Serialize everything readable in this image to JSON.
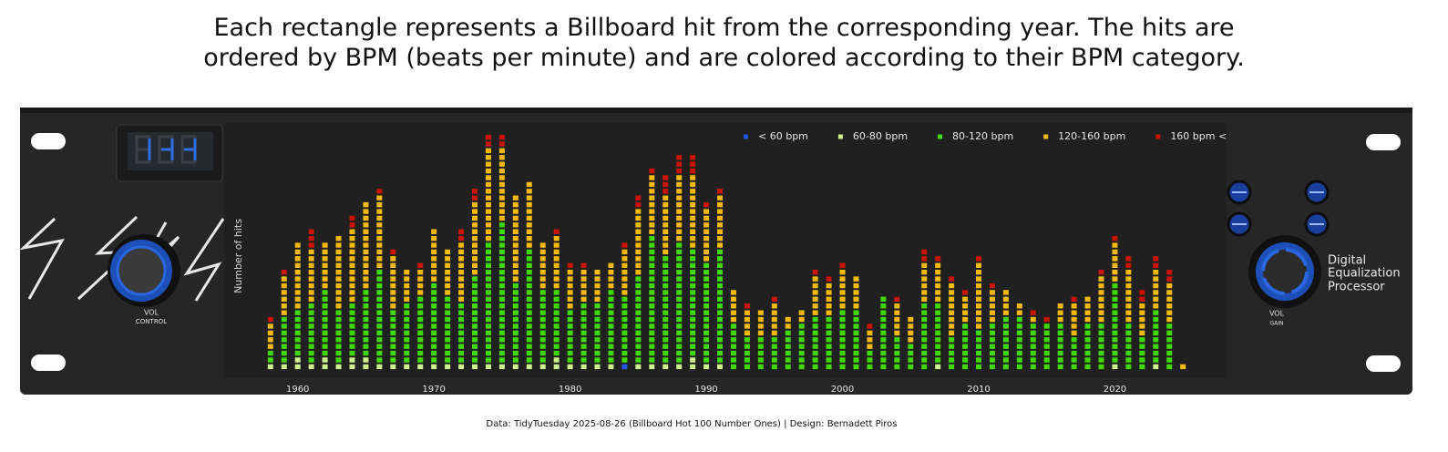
{
  "chart_data": {
    "type": "stacked-cells",
    "title": "Each rectangle represents a Billboard hit from the corresponding year. The hits are ordered by BPM (beats per minute) and are colored according to their BPM category.",
    "ylabel": "Number of hits",
    "caption": "Data: TidyTuesday 2025-08-26 (Billboard Hot 100 Number Ones) | Design: Bernadett Piros",
    "legend": "upper right",
    "x": [
      1958,
      1959,
      1960,
      1961,
      1962,
      1963,
      1964,
      1965,
      1966,
      1967,
      1968,
      1969,
      1970,
      1971,
      1972,
      1973,
      1974,
      1975,
      1976,
      1977,
      1978,
      1979,
      1980,
      1981,
      1982,
      1983,
      1984,
      1985,
      1986,
      1987,
      1988,
      1989,
      1990,
      1991,
      1992,
      1993,
      1994,
      1995,
      1996,
      1997,
      1998,
      1999,
      2000,
      2001,
      2002,
      2003,
      2004,
      2005,
      2006,
      2007,
      2008,
      2009,
      2010,
      2011,
      2012,
      2013,
      2014,
      2015,
      2016,
      2017,
      2018,
      2019,
      2020,
      2021,
      2022,
      2023,
      2024,
      2025
    ],
    "xlim": [
      1954.6,
      2028.2
    ],
    "xticks": [
      1960,
      1970,
      1980,
      1990,
      2000,
      2010,
      2020
    ],
    "ylim": [
      -1.2,
      36.6
    ],
    "series": [
      {
        "name": "< 60 bpm",
        "color": "#1f55e0",
        "values": [
          0,
          0,
          0,
          0,
          0,
          0,
          0,
          0,
          0,
          0,
          0,
          0,
          0,
          0,
          0,
          0,
          0,
          0,
          0,
          0,
          0,
          0,
          0,
          0,
          0,
          0,
          1,
          0,
          0,
          0,
          0,
          0,
          0,
          0,
          0,
          0,
          0,
          0,
          0,
          0,
          0,
          0,
          0,
          0,
          0,
          0,
          0,
          0,
          0,
          0,
          0,
          0,
          0,
          0,
          0,
          0,
          0,
          0,
          0,
          0,
          0,
          0,
          0,
          0,
          0,
          0,
          0,
          0
        ]
      },
      {
        "name": "60-80 bpm",
        "color": "#cdf08c",
        "values": [
          1,
          1,
          2,
          1,
          2,
          1,
          2,
          2,
          1,
          1,
          1,
          1,
          1,
          1,
          1,
          1,
          1,
          1,
          1,
          1,
          1,
          2,
          1,
          1,
          1,
          1,
          0,
          1,
          1,
          1,
          1,
          2,
          1,
          1,
          0,
          0,
          0,
          0,
          0,
          0,
          0,
          0,
          0,
          0,
          0,
          0,
          0,
          0,
          0,
          1,
          0,
          0,
          0,
          0,
          0,
          0,
          0,
          0,
          0,
          0,
          0,
          0,
          1,
          0,
          0,
          1,
          0,
          0
        ]
      },
      {
        "name": "80-120 bpm",
        "color": "#3fd900",
        "values": [
          2,
          7,
          7,
          9,
          10,
          8,
          8,
          10,
          14,
          8,
          9,
          10,
          12,
          10,
          9,
          13,
          18,
          21,
          12,
          17,
          11,
          10,
          8,
          9,
          9,
          11,
          10,
          13,
          19,
          16,
          18,
          16,
          15,
          17,
          7,
          5,
          5,
          5,
          6,
          7,
          8,
          8,
          9,
          9,
          3,
          11,
          5,
          4,
          10,
          9,
          5,
          7,
          6,
          7,
          8,
          8,
          7,
          7,
          7,
          5,
          7,
          7,
          12,
          7,
          5,
          8,
          7,
          0
        ]
      },
      {
        "name": "120-160 bpm",
        "color": "#f5b90a",
        "values": [
          4,
          6,
          10,
          8,
          7,
          11,
          11,
          13,
          11,
          8,
          5,
          4,
          8,
          7,
          9,
          11,
          14,
          11,
          13,
          10,
          7,
          8,
          6,
          5,
          5,
          4,
          7,
          10,
          9,
          9,
          10,
          11,
          8,
          8,
          5,
          4,
          4,
          5,
          2,
          2,
          6,
          5,
          6,
          5,
          3,
          0,
          5,
          4,
          6,
          6,
          8,
          4,
          10,
          5,
          4,
          2,
          1,
          0,
          3,
          5,
          4,
          7,
          6,
          8,
          5,
          6,
          6,
          1
        ]
      },
      {
        "name": "160 bpm <",
        "color": "#c81400",
        "values": [
          1,
          1,
          0,
          3,
          0,
          0,
          2,
          0,
          1,
          1,
          0,
          1,
          0,
          0,
          2,
          2,
          2,
          2,
          0,
          0,
          0,
          1,
          1,
          1,
          0,
          0,
          1,
          2,
          1,
          3,
          3,
          3,
          1,
          1,
          0,
          1,
          0,
          1,
          0,
          0,
          1,
          1,
          1,
          0,
          1,
          0,
          1,
          0,
          2,
          1,
          1,
          1,
          1,
          1,
          0,
          0,
          1,
          1,
          0,
          1,
          0,
          1,
          1,
          2,
          2,
          2,
          2,
          0
        ]
      }
    ]
  },
  "panel": {
    "left_knob": [
      "VOL",
      "CONTROL"
    ],
    "right_knob": [
      "VOL",
      "GAIN"
    ],
    "brand": [
      "Digital",
      "Equalization",
      "Processor"
    ]
  }
}
